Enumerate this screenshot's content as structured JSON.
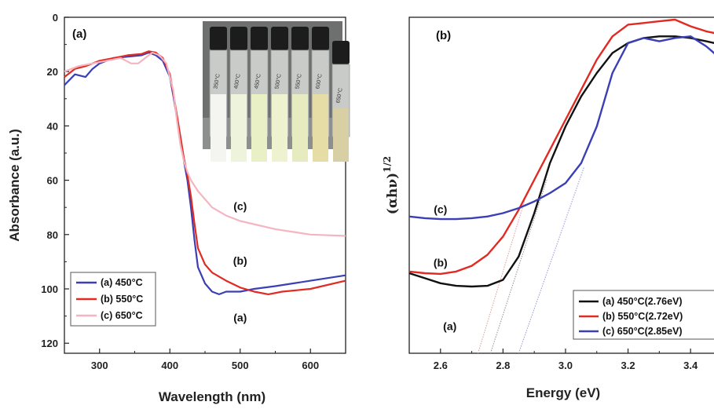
{
  "chart_data": [
    {
      "type": "line",
      "panel_label": "(a)",
      "xlabel": "Wavelength (nm)",
      "ylabel": "Absorbance (a.u.)",
      "xlim": [
        250,
        650
      ],
      "ylim": [
        0,
        125
      ],
      "y_inverted": true,
      "xticks": [
        300,
        400,
        500,
        600
      ],
      "yticks": [
        0,
        20,
        40,
        60,
        80,
        100,
        120
      ],
      "legend_position": "bottom-left",
      "inset_photo": "vials",
      "inset_vial_labels": [
        "350°C",
        "400°C",
        "450°C",
        "500°C",
        "550°C",
        "600°C",
        "650°C"
      ],
      "curve_labels": [
        {
          "text": "(c)",
          "x": 500,
          "y": 71
        },
        {
          "text": "(b)",
          "x": 500,
          "y": 91
        },
        {
          "text": "(a)",
          "x": 500,
          "y": 112
        }
      ],
      "series": [
        {
          "name": "(a) 450°C",
          "color": "#3b3fb5",
          "x": [
            250,
            265,
            280,
            290,
            300,
            320,
            340,
            360,
            370,
            380,
            390,
            400,
            405,
            410,
            415,
            420,
            425,
            430,
            435,
            440,
            450,
            460,
            470,
            480,
            500,
            520,
            550,
            600,
            650
          ],
          "y": [
            25,
            21,
            22,
            19,
            17,
            15,
            14.5,
            14,
            13,
            14,
            16,
            22,
            29,
            37,
            45,
            53,
            60,
            70,
            82,
            92,
            98,
            101,
            102,
            101,
            101,
            100,
            99,
            97,
            95
          ]
        },
        {
          "name": "(b) 550°C",
          "color": "#e02a22",
          "x": [
            250,
            265,
            280,
            290,
            300,
            320,
            340,
            360,
            370,
            380,
            390,
            400,
            405,
            410,
            415,
            420,
            425,
            430,
            435,
            440,
            450,
            460,
            480,
            500,
            520,
            540,
            560,
            600,
            650
          ],
          "y": [
            22,
            19,
            18,
            17,
            16,
            15,
            14,
            13.5,
            12.5,
            13,
            15,
            21,
            28,
            36,
            44,
            52,
            58,
            66,
            76,
            85,
            91,
            94,
            97,
            99.5,
            101,
            102,
            101,
            100,
            97
          ]
        },
        {
          "name": "(c) 650°C",
          "color": "#f4b5c0",
          "x": [
            250,
            270,
            290,
            310,
            330,
            345,
            355,
            365,
            375,
            385,
            395,
            405,
            410,
            415,
            420,
            425,
            430,
            440,
            450,
            460,
            480,
            500,
            550,
            600,
            650
          ],
          "y": [
            20,
            18,
            17,
            16,
            15,
            17,
            17,
            15,
            13,
            14,
            17,
            27,
            38,
            47,
            53,
            57,
            60,
            64,
            67,
            70,
            73,
            75,
            78,
            80,
            80.5
          ]
        }
      ]
    },
    {
      "type": "line",
      "panel_label": "(b)",
      "xlabel": "Energy (eV)",
      "ylabel": "(αhν)",
      "ylabel_exponent": "1/2",
      "xlim": [
        2.5,
        3.5
      ],
      "xticks": [
        2.6,
        2.8,
        3.0,
        3.2,
        3.4
      ],
      "yticks_shown": false,
      "legend_position": "bottom-right",
      "curve_labels": [
        {
          "text": "(c)",
          "x": 2.6,
          "y": 0.42
        },
        {
          "text": "(b)",
          "x": 2.6,
          "y": 0.26
        },
        {
          "text": "(a)",
          "x": 2.63,
          "y": 0.07
        }
      ],
      "series": [
        {
          "name": "(a) 450°C(2.76eV)",
          "color": "#111111",
          "x": [
            2.5,
            2.55,
            2.6,
            2.65,
            2.7,
            2.75,
            2.8,
            2.85,
            2.9,
            2.95,
            3.0,
            3.05,
            3.1,
            3.15,
            3.2,
            3.25,
            3.3,
            3.35,
            3.4,
            3.45,
            3.5
          ],
          "y": [
            0.24,
            0.225,
            0.21,
            0.202,
            0.2,
            0.202,
            0.22,
            0.29,
            0.42,
            0.57,
            0.68,
            0.77,
            0.84,
            0.9,
            0.93,
            0.945,
            0.95,
            0.95,
            0.945,
            0.935,
            0.925
          ]
        },
        {
          "name": "(b) 550°C(2.72eV)",
          "color": "#e02a22",
          "x": [
            2.5,
            2.55,
            2.6,
            2.65,
            2.7,
            2.75,
            2.8,
            2.85,
            2.9,
            2.95,
            3.0,
            3.05,
            3.1,
            3.15,
            3.2,
            3.25,
            3.3,
            3.35,
            3.4,
            3.45,
            3.5
          ],
          "y": [
            0.245,
            0.24,
            0.238,
            0.245,
            0.262,
            0.295,
            0.35,
            0.43,
            0.52,
            0.61,
            0.7,
            0.79,
            0.88,
            0.95,
            0.985,
            0.99,
            0.995,
            1.0,
            0.98,
            0.965,
            0.955
          ]
        },
        {
          "name": "(c) 650°C(2.85eV)",
          "color": "#3b3fb5",
          "x": [
            2.5,
            2.55,
            2.6,
            2.65,
            2.7,
            2.75,
            2.8,
            2.85,
            2.9,
            2.95,
            3.0,
            3.05,
            3.1,
            3.15,
            3.2,
            3.25,
            3.3,
            3.35,
            3.4,
            3.45,
            3.5
          ],
          "y": [
            0.41,
            0.405,
            0.402,
            0.402,
            0.405,
            0.41,
            0.42,
            0.435,
            0.455,
            0.48,
            0.51,
            0.57,
            0.68,
            0.84,
            0.93,
            0.945,
            0.935,
            0.945,
            0.95,
            0.92,
            0.88
          ]
        }
      ],
      "tangent_lines": [
        {
          "color": "#e8a0a0",
          "from": [
            2.72,
            0.0
          ],
          "to": [
            2.87,
            0.46
          ]
        },
        {
          "color": "#999999",
          "from": [
            2.76,
            0.0
          ],
          "to": [
            2.94,
            0.52
          ]
        },
        {
          "color": "#9aa0d8",
          "from": [
            2.85,
            0.0
          ],
          "to": [
            3.06,
            0.56
          ]
        }
      ]
    }
  ]
}
